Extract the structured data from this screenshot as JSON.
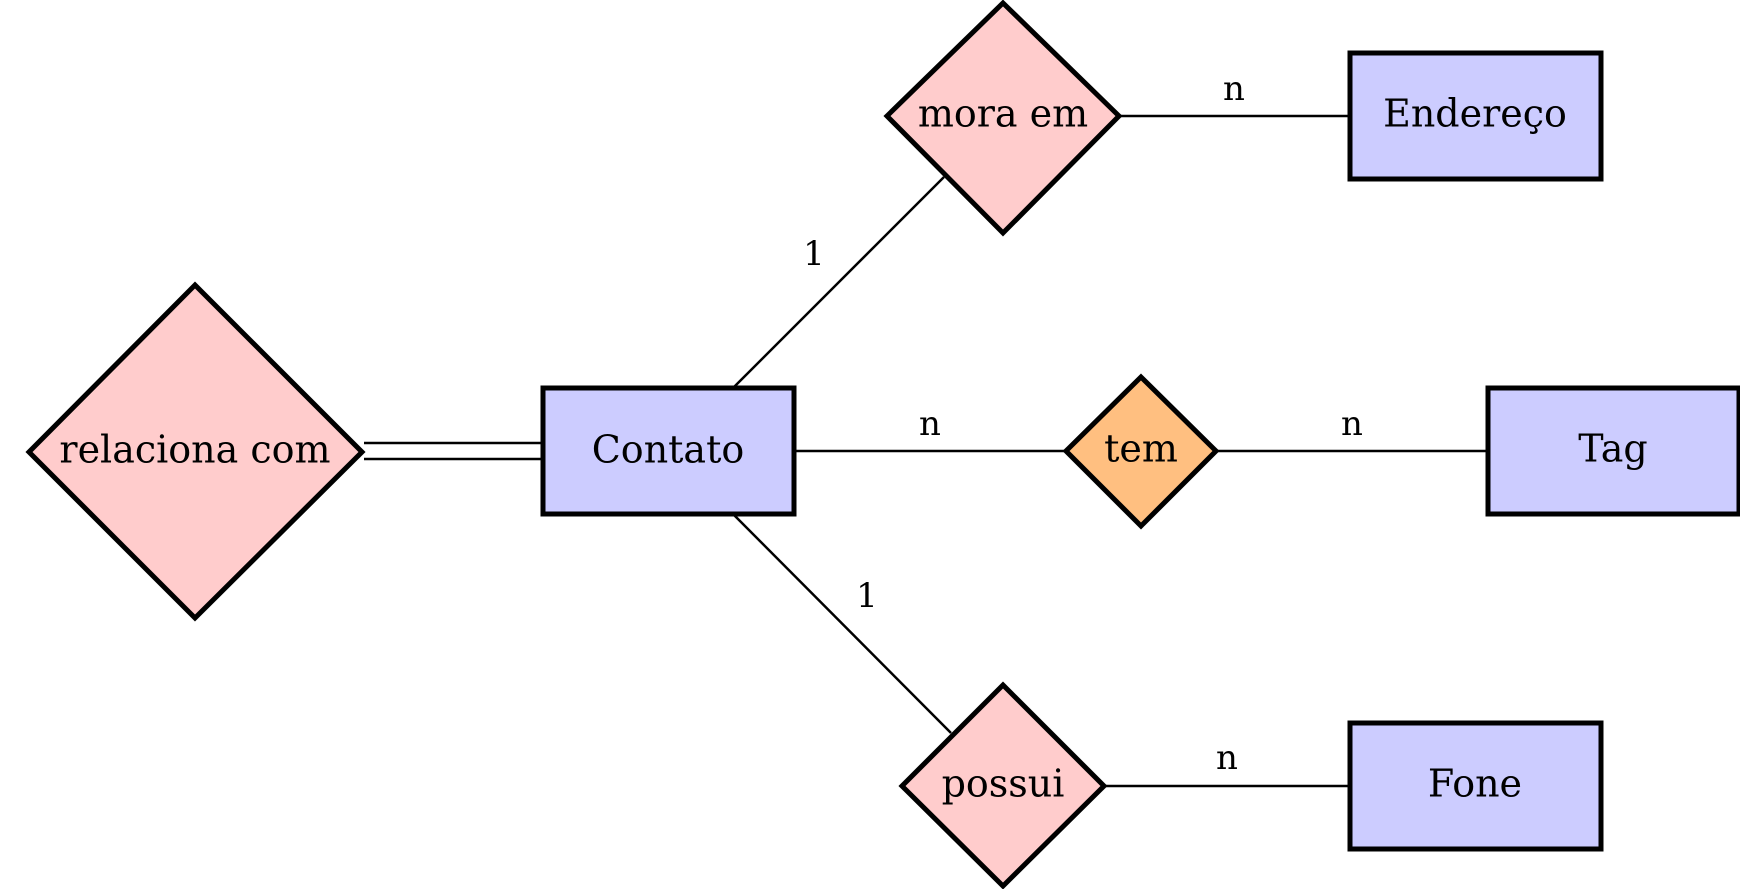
{
  "colors": {
    "entity_fill": "#ccccff",
    "relation_fill": "#ffcccc",
    "highlight_relation_fill": "#ffbf80",
    "stroke": "#000000"
  },
  "entities": {
    "contato": "Contato",
    "endereco": "Endereço",
    "tag": "Tag",
    "fone": "Fone"
  },
  "relationships": {
    "relaciona_com": "relaciona com",
    "mora_em": "mora em",
    "tem": "tem",
    "possui": "possui"
  },
  "cardinalities": {
    "contato_mora_em": "1",
    "mora_em_endereco": "n",
    "contato_tem": "n",
    "tem_tag": "n",
    "contato_possui": "1",
    "possui_fone": "n"
  }
}
